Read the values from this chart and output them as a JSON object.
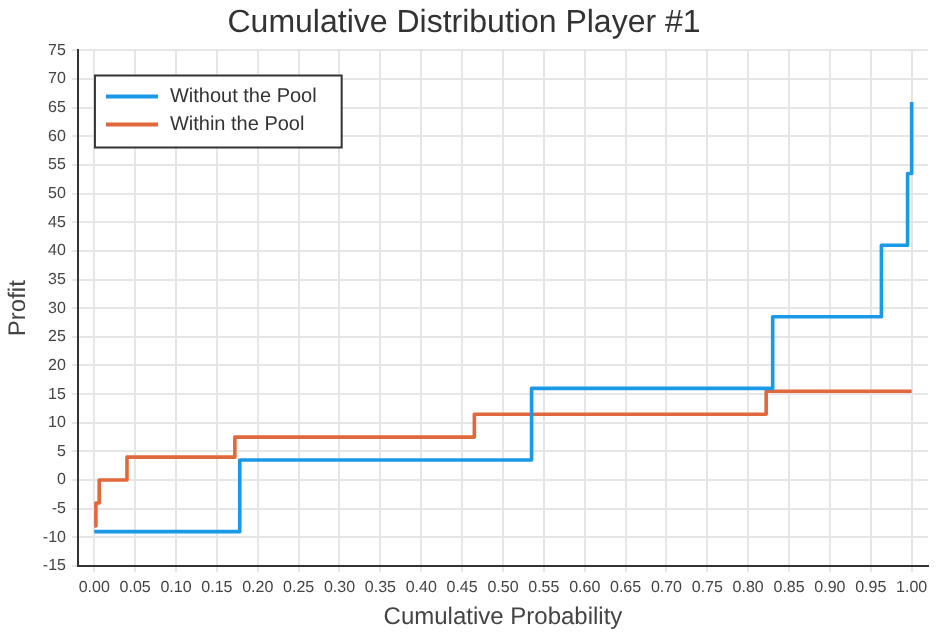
{
  "chart_data": {
    "type": "step",
    "title": "Cumulative Distribution Player #1",
    "xlabel": "Cumulative Probability",
    "ylabel": "Profit",
    "series": [
      {
        "name": "Without the Pool",
        "color": "#1a9ae6",
        "x": [
          0,
          0.178,
          0.535,
          0.83,
          0.963,
          0.995,
          1
        ],
        "values": [
          -9,
          3.5,
          16,
          28.5,
          41,
          53.5,
          66
        ]
      },
      {
        "name": "Within the Pool",
        "color": "#e0683c",
        "x": [
          0,
          0.002,
          0.006,
          0.04,
          0.172,
          0.465,
          0.822,
          1
        ],
        "values": [
          -8,
          -4,
          0,
          4,
          7.5,
          11.5,
          15.5,
          15.5
        ]
      }
    ],
    "xlim": [
      -0.02,
      1.02
    ],
    "xticks": [
      {
        "value": 0,
        "label": "0.00"
      },
      {
        "value": 0.05,
        "label": "0.05"
      },
      {
        "value": 0.1,
        "label": "0.10"
      },
      {
        "value": 0.15,
        "label": "0.15"
      },
      {
        "value": 0.2,
        "label": "0.20"
      },
      {
        "value": 0.25,
        "label": "0.25"
      },
      {
        "value": 0.3,
        "label": "0.30"
      },
      {
        "value": 0.35,
        "label": "0.35"
      },
      {
        "value": 0.4,
        "label": "0.40"
      },
      {
        "value": 0.45,
        "label": "0.45"
      },
      {
        "value": 0.5,
        "label": "0.50"
      },
      {
        "value": 0.55,
        "label": "0.55"
      },
      {
        "value": 0.6,
        "label": "0.60"
      },
      {
        "value": 0.65,
        "label": "0.65"
      },
      {
        "value": 0.7,
        "label": "0.70"
      },
      {
        "value": 0.75,
        "label": "0.75"
      },
      {
        "value": 0.8,
        "label": "0.80"
      },
      {
        "value": 0.85,
        "label": "0.85"
      },
      {
        "value": 0.9,
        "label": "0.90"
      },
      {
        "value": 0.95,
        "label": "0.95"
      },
      {
        "value": 1,
        "label": "1.00"
      }
    ],
    "ylim": [
      -15,
      75
    ],
    "yticks": [
      -15,
      -10,
      -5,
      0,
      5,
      10,
      15,
      20,
      25,
      30,
      35,
      40,
      45,
      50,
      55,
      60,
      65,
      70,
      75
    ],
    "grid": true,
    "legend": "top left",
    "marker": "none",
    "line_style": "solid"
  }
}
